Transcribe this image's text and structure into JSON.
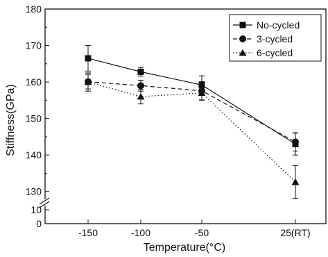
{
  "chart_data": {
    "type": "line",
    "title": "",
    "xlabel": "Temperature(°C)",
    "ylabel": "Stiffness(GPa)",
    "x_categories": [
      "-150",
      "-100",
      "-50",
      "25(RT)"
    ],
    "ylim": [
      0,
      180
    ],
    "y_axis_break": [
      10,
      125
    ],
    "y_ticks": [
      0,
      10,
      130,
      140,
      150,
      160,
      170,
      180
    ],
    "grid": false,
    "legend_position": "top-right",
    "series": [
      {
        "name": "No-cycled",
        "marker": "square",
        "line_style": "solid",
        "values": [
          166.5,
          162.8,
          159.2,
          143.0
        ],
        "errors": [
          3.5,
          1.2,
          2.5,
          3.0
        ]
      },
      {
        "name": "3-cycled",
        "marker": "circle",
        "line_style": "dashed",
        "values": [
          160.1,
          159.0,
          157.6,
          143.6
        ],
        "errors": [
          2.0,
          1.5,
          2.5,
          2.5
        ]
      },
      {
        "name": "6-cycled",
        "marker": "triangle",
        "line_style": "dotted",
        "values": [
          160.0,
          156.0,
          157.0,
          132.6
        ],
        "errors": [
          2.5,
          2.0,
          2.0,
          4.5
        ]
      }
    ],
    "colors": {
      "line": "#111111",
      "background": "#ffffff"
    }
  }
}
